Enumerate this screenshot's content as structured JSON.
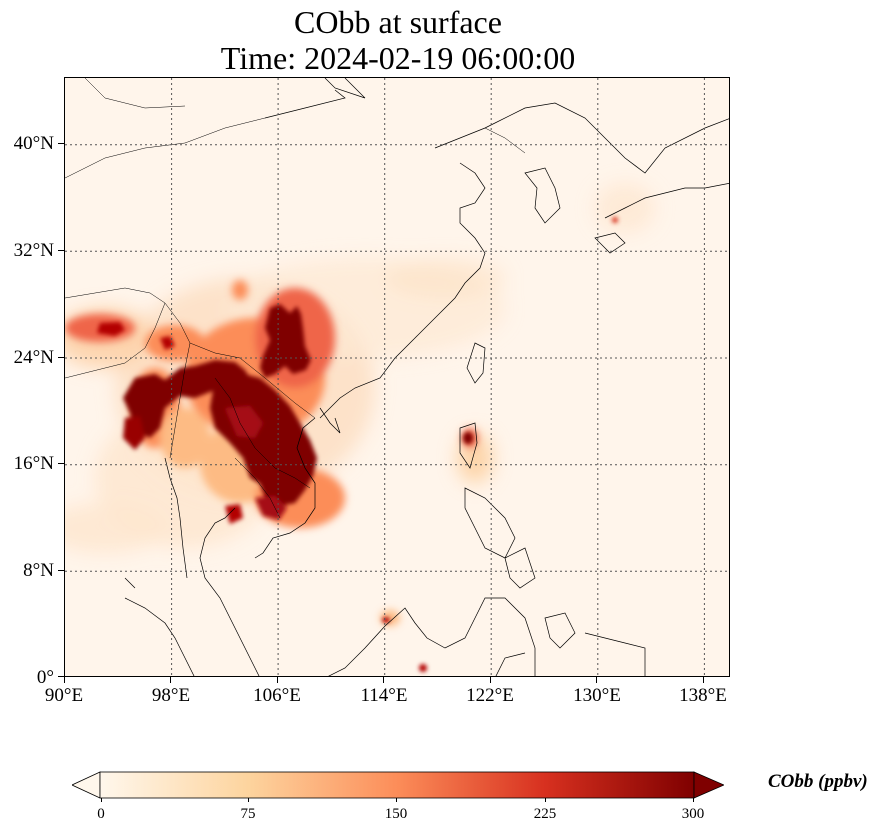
{
  "title": {
    "line1": "CObb at surface",
    "line2": "Time: 2024-02-19 06:00:00"
  },
  "map": {
    "lat_ticks": [
      "40°N",
      "32°N",
      "24°N",
      "16°N",
      "8°N",
      "0°"
    ],
    "lon_ticks": [
      "90°E",
      "98°E",
      "106°E",
      "114°E",
      "122°E",
      "130°E",
      "138°E"
    ],
    "gridlines": "dotted",
    "extent_lon": [
      90,
      140
    ],
    "extent_lat": [
      0,
      45
    ]
  },
  "colorbar": {
    "label": "CObb (ppbv)",
    "ticks": [
      "0",
      "75",
      "150",
      "225",
      "300"
    ],
    "range": [
      0,
      300
    ],
    "extend": "both",
    "colormap": "OrRd",
    "colors": [
      "#fff7ec",
      "#fdd49e",
      "#fc8d59",
      "#d7301f",
      "#7f0000"
    ]
  }
}
